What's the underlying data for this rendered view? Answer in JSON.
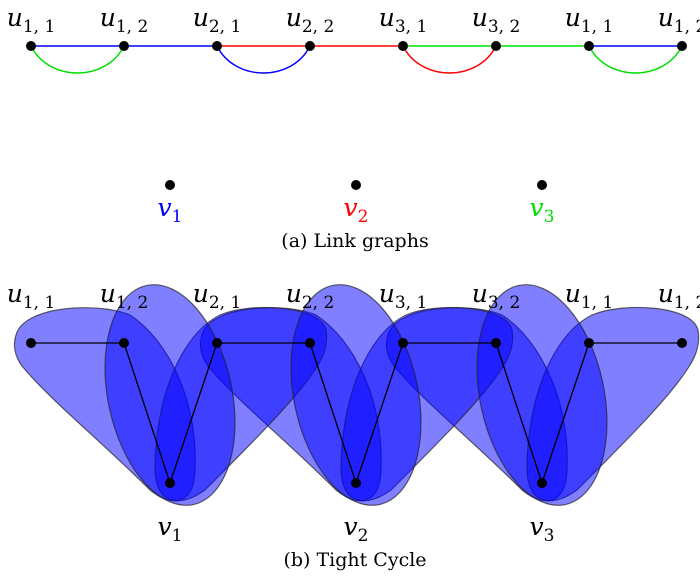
{
  "colors": {
    "c1": "#0000ff",
    "c2": "#ff0000",
    "c3": "#00e000",
    "hyper": "#0000ff",
    "ink": "#000000"
  },
  "link_graphs": {
    "caption": "(a) Link graphs",
    "u_labels": [
      {
        "base": "u",
        "sub": "1, 1"
      },
      {
        "base": "u",
        "sub": "1, 2"
      },
      {
        "base": "u",
        "sub": "2, 1"
      },
      {
        "base": "u",
        "sub": "2, 2"
      },
      {
        "base": "u",
        "sub": "3, 1"
      },
      {
        "base": "u",
        "sub": "3, 2"
      },
      {
        "base": "u",
        "sub": "1, 1"
      },
      {
        "base": "u",
        "sub": "1, 2"
      }
    ],
    "v_labels": [
      {
        "base": "v",
        "sub": "1",
        "color": "#0000ff"
      },
      {
        "base": "v",
        "sub": "2",
        "color": "#ff0000"
      },
      {
        "base": "v",
        "sub": "3",
        "color": "#00e000"
      }
    ],
    "straight_edges": [
      {
        "from": 0,
        "to": 1,
        "color": "#0000ff"
      },
      {
        "from": 1,
        "to": 2,
        "color": "#0000ff"
      },
      {
        "from": 2,
        "to": 3,
        "color": "#ff0000"
      },
      {
        "from": 3,
        "to": 4,
        "color": "#ff0000"
      },
      {
        "from": 4,
        "to": 5,
        "color": "#00e000"
      },
      {
        "from": 5,
        "to": 6,
        "color": "#00e000"
      },
      {
        "from": 6,
        "to": 7,
        "color": "#0000ff"
      }
    ],
    "arc_edges": [
      {
        "from": 0,
        "to": 1,
        "color": "#00e000"
      },
      {
        "from": 2,
        "to": 3,
        "color": "#0000ff"
      },
      {
        "from": 4,
        "to": 5,
        "color": "#ff0000"
      },
      {
        "from": 6,
        "to": 7,
        "color": "#00e000"
      }
    ]
  },
  "tight_cycle": {
    "caption": "(b) Tight Cycle",
    "u_labels": [
      {
        "base": "u",
        "sub": "1, 1"
      },
      {
        "base": "u",
        "sub": "1, 2"
      },
      {
        "base": "u",
        "sub": "2, 1"
      },
      {
        "base": "u",
        "sub": "2, 2"
      },
      {
        "base": "u",
        "sub": "3, 1"
      },
      {
        "base": "u",
        "sub": "3, 2"
      },
      {
        "base": "u",
        "sub": "1, 1"
      },
      {
        "base": "u",
        "sub": "1, 2"
      }
    ],
    "v_labels": [
      {
        "base": "v",
        "sub": "1"
      },
      {
        "base": "v",
        "sub": "2"
      },
      {
        "base": "v",
        "sub": "3"
      }
    ]
  }
}
